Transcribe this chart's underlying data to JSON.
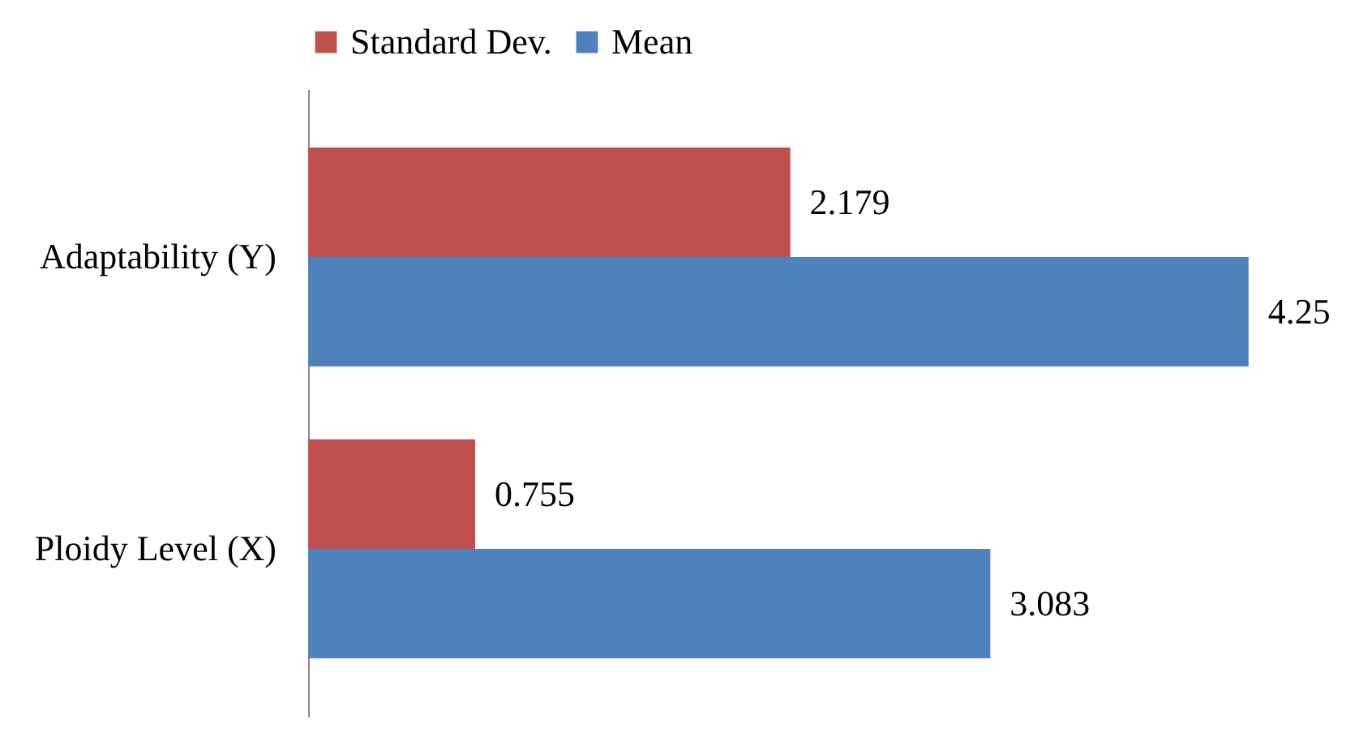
{
  "chart_data": {
    "type": "bar",
    "orientation": "horizontal",
    "categories": [
      "Adaptability (Y)",
      "Ploidy Level (X)"
    ],
    "series": [
      {
        "name": "Standard Dev.",
        "color": "#c0504d",
        "values": [
          2.179,
          0.755
        ]
      },
      {
        "name": "Mean",
        "color": "#4f81bd",
        "values": [
          4.25,
          3.083
        ]
      }
    ],
    "data_labels": true,
    "legend": "top",
    "grid": false
  }
}
